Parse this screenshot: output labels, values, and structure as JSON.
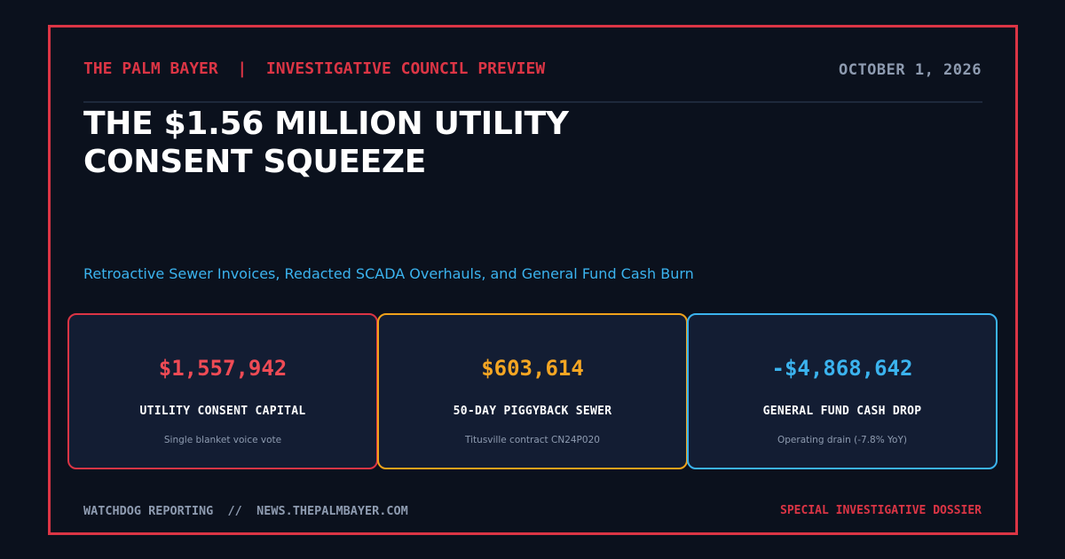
{
  "header": {
    "publication": "THE PALM BAYER",
    "separator": "  |  ",
    "section": "INVESTIGATIVE COUNCIL PREVIEW",
    "date": "OCTOBER 1, 2026"
  },
  "headline": {
    "title": "THE $1.56 MILLION UTILITY CONSENT SQUEEZE",
    "subtitle": "Retroactive Sewer Invoices, Redacted SCADA Overhauls, and General Fund Cash Burn"
  },
  "cards": [
    {
      "value": "$1,557,942",
      "label": "UTILITY CONSENT CAPITAL",
      "note": "Single blanket voice vote",
      "accent": "#dc3545"
    },
    {
      "value": "$603,614",
      "label": "50-DAY PIGGYBACK SEWER",
      "note": "Titusville contract CN24P020",
      "accent": "#f0a21b"
    },
    {
      "value": "-$4,868,642",
      "label": "GENERAL FUND CASH DROP",
      "note": "Operating drain (-7.8% YoY)",
      "accent": "#3bb3ee"
    }
  ],
  "footer": {
    "left": "WATCHDOG REPORTING  //  NEWS.THEPALMBAYER.COM",
    "right": "SPECIAL INVESTIGATIVE DOSSIER"
  }
}
